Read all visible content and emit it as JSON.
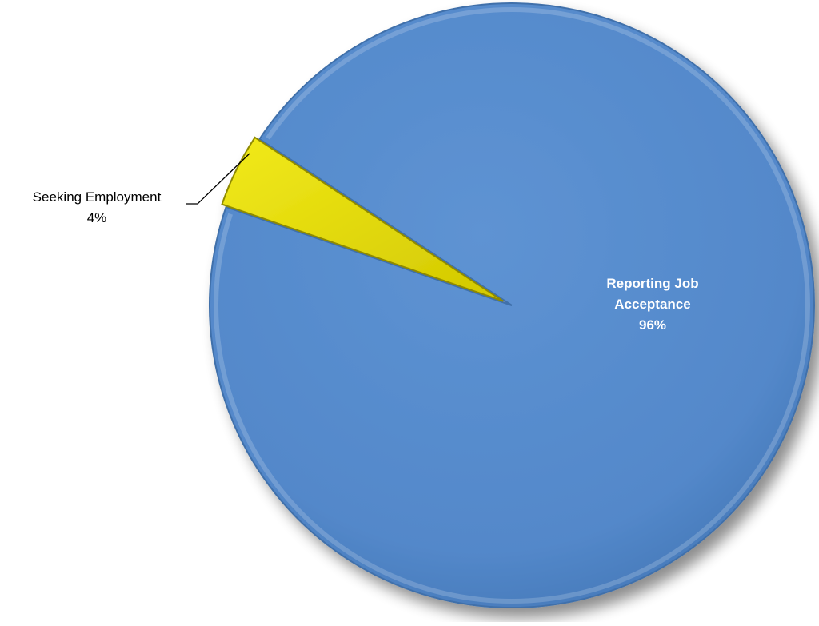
{
  "chart_data": {
    "type": "pie",
    "title": "",
    "slices": [
      {
        "label": "Reporting Job Acceptance",
        "label_lines": [
          "Reporting Job",
          "Acceptance"
        ],
        "percent_label": "96%",
        "value": 96,
        "color": "#5589C9"
      },
      {
        "label": "Seeking Employment",
        "label_lines": [
          "Seeking Employment"
        ],
        "percent_label": "4%",
        "value": 4,
        "color": "#E6DC00"
      }
    ],
    "legend": "none"
  }
}
